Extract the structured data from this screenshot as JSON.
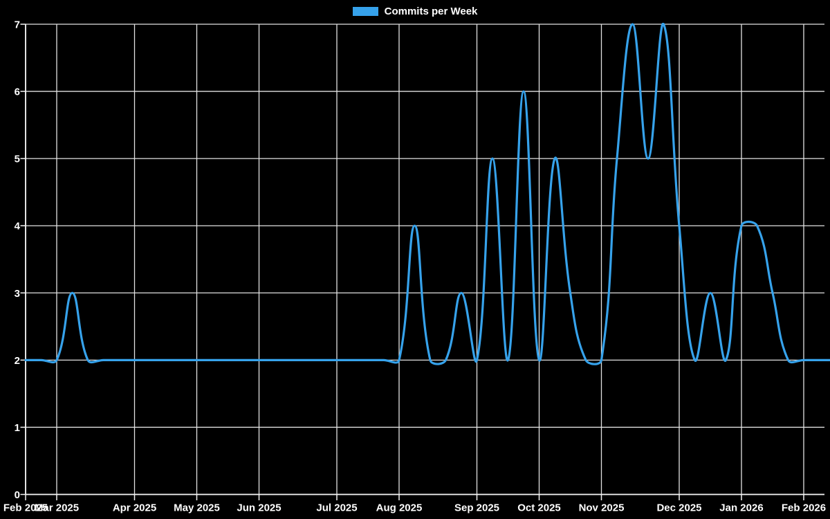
{
  "chart_data": {
    "type": "line",
    "title": "",
    "legend_label": "Commits per Week",
    "legend_position": "top-center",
    "grid": true,
    "background_color": "#000000",
    "line_color": "#36a2eb",
    "grid_color": "#e3e3e3",
    "axis_color": "#f5f5f5",
    "text_color": "#ffffff",
    "x_unit": "week",
    "ylim": [
      0,
      7
    ],
    "y_ticks": [
      "0",
      "1",
      "2",
      "3",
      "4",
      "5",
      "6",
      "7"
    ],
    "x_ticks": [
      {
        "label": "Feb 2025",
        "week_index": 0
      },
      {
        "label": "Mar 2025",
        "week_index": 2
      },
      {
        "label": "Apr 2025",
        "week_index": 7
      },
      {
        "label": "May 2025",
        "week_index": 11
      },
      {
        "label": "Jun 2025",
        "week_index": 15
      },
      {
        "label": "Jul 2025",
        "week_index": 20
      },
      {
        "label": "Aug 2025",
        "week_index": 24
      },
      {
        "label": "Sep 2025",
        "week_index": 29
      },
      {
        "label": "Oct 2025",
        "week_index": 33
      },
      {
        "label": "Nov 2025",
        "week_index": 37
      },
      {
        "label": "Dec 2025",
        "week_index": 42
      },
      {
        "label": "Jan 2026",
        "week_index": 46
      },
      {
        "label": "Feb 2026",
        "week_index": 50
      }
    ],
    "values": [
      2,
      2,
      2,
      3,
      2,
      2,
      2,
      2,
      2,
      2,
      2,
      2,
      2,
      2,
      2,
      2,
      2,
      2,
      2,
      2,
      2,
      2,
      2,
      2,
      2,
      4,
      2,
      2,
      3,
      2,
      5,
      2,
      6,
      2,
      5,
      3,
      2,
      2,
      5,
      7,
      5,
      7,
      4,
      2,
      3,
      2,
      4,
      4,
      3,
      2,
      2,
      2,
      2
    ]
  }
}
